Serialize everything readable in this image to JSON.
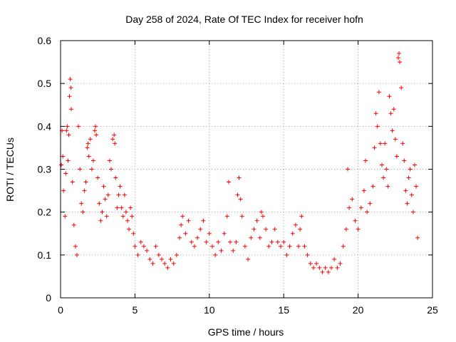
{
  "chart_data": {
    "type": "scatter",
    "title": "Day 258 of 2024, Rate Of TEC Index for receiver hofn",
    "xlabel": "GPS time / hours",
    "ylabel": "ROTI / TECUs",
    "xlim": [
      0,
      25
    ],
    "ylim": [
      0,
      0.6
    ],
    "xticks": [
      0,
      5,
      10,
      15,
      20,
      25
    ],
    "xtick_labels": [
      "0",
      "5",
      "10",
      "15",
      "20",
      "25"
    ],
    "yticks": [
      0,
      0.1,
      0.2,
      0.3,
      0.4,
      0.5,
      0.6
    ],
    "ytick_labels": [
      "0",
      "0.1",
      "0.2",
      "0.3",
      "0.4",
      "0.5",
      "0.6"
    ],
    "grid": true,
    "marker": "+",
    "color": "#ff0000",
    "series": [
      {
        "name": "ROTI",
        "points": [
          [
            0.05,
            0.31
          ],
          [
            0.1,
            0.39
          ],
          [
            0.15,
            0.33
          ],
          [
            0.2,
            0.25
          ],
          [
            0.3,
            0.19
          ],
          [
            0.35,
            0.29
          ],
          [
            0.4,
            0.39
          ],
          [
            0.45,
            0.4
          ],
          [
            0.5,
            0.32
          ],
          [
            0.55,
            0.38
          ],
          [
            0.6,
            0.47
          ],
          [
            0.65,
            0.51
          ],
          [
            0.7,
            0.49
          ],
          [
            0.72,
            0.44
          ],
          [
            0.8,
            0.27
          ],
          [
            0.9,
            0.17
          ],
          [
            1.0,
            0.12
          ],
          [
            1.1,
            0.1
          ],
          [
            1.2,
            0.4
          ],
          [
            1.3,
            0.3
          ],
          [
            1.4,
            0.22
          ],
          [
            1.5,
            0.2
          ],
          [
            1.6,
            0.25
          ],
          [
            1.7,
            0.27
          ],
          [
            1.8,
            0.35
          ],
          [
            1.85,
            0.36
          ],
          [
            1.9,
            0.33
          ],
          [
            2.0,
            0.37
          ],
          [
            2.1,
            0.3
          ],
          [
            2.2,
            0.32
          ],
          [
            2.3,
            0.39
          ],
          [
            2.35,
            0.4
          ],
          [
            2.4,
            0.38
          ],
          [
            2.5,
            0.28
          ],
          [
            2.6,
            0.22
          ],
          [
            2.7,
            0.18
          ],
          [
            2.8,
            0.2
          ],
          [
            2.9,
            0.26
          ],
          [
            3.0,
            0.23
          ],
          [
            3.1,
            0.19
          ],
          [
            3.2,
            0.24
          ],
          [
            3.3,
            0.32
          ],
          [
            3.4,
            0.3
          ],
          [
            3.5,
            0.37
          ],
          [
            3.6,
            0.38
          ],
          [
            3.65,
            0.36
          ],
          [
            3.7,
            0.28
          ],
          [
            3.8,
            0.21
          ],
          [
            3.9,
            0.24
          ],
          [
            4.0,
            0.26
          ],
          [
            4.1,
            0.21
          ],
          [
            4.2,
            0.19
          ],
          [
            4.3,
            0.24
          ],
          [
            4.4,
            0.2
          ],
          [
            4.5,
            0.18
          ],
          [
            4.6,
            0.16
          ],
          [
            4.7,
            0.21
          ],
          [
            4.8,
            0.19
          ],
          [
            4.9,
            0.15
          ],
          [
            5.0,
            0.12
          ],
          [
            5.2,
            0.1
          ],
          [
            5.4,
            0.13
          ],
          [
            5.6,
            0.12
          ],
          [
            5.8,
            0.11
          ],
          [
            6.0,
            0.09
          ],
          [
            6.2,
            0.08
          ],
          [
            6.4,
            0.12
          ],
          [
            6.6,
            0.1
          ],
          [
            6.8,
            0.09
          ],
          [
            7.0,
            0.08
          ],
          [
            7.2,
            0.07
          ],
          [
            7.4,
            0.09
          ],
          [
            7.6,
            0.08
          ],
          [
            7.8,
            0.1
          ],
          [
            8.0,
            0.14
          ],
          [
            8.1,
            0.17
          ],
          [
            8.2,
            0.19
          ],
          [
            8.4,
            0.15
          ],
          [
            8.6,
            0.18
          ],
          [
            8.8,
            0.13
          ],
          [
            9.0,
            0.12
          ],
          [
            9.2,
            0.14
          ],
          [
            9.4,
            0.16
          ],
          [
            9.6,
            0.18
          ],
          [
            9.8,
            0.13
          ],
          [
            10.0,
            0.15
          ],
          [
            10.2,
            0.12
          ],
          [
            10.4,
            0.1
          ],
          [
            10.6,
            0.13
          ],
          [
            10.8,
            0.11
          ],
          [
            11.0,
            0.15
          ],
          [
            11.2,
            0.19
          ],
          [
            11.3,
            0.27
          ],
          [
            11.4,
            0.13
          ],
          [
            11.6,
            0.11
          ],
          [
            11.8,
            0.13
          ],
          [
            11.9,
            0.24
          ],
          [
            12.0,
            0.28
          ],
          [
            12.1,
            0.23
          ],
          [
            12.2,
            0.19
          ],
          [
            12.4,
            0.12
          ],
          [
            12.6,
            0.09
          ],
          [
            12.8,
            0.14
          ],
          [
            13.0,
            0.16
          ],
          [
            13.2,
            0.18
          ],
          [
            13.4,
            0.14
          ],
          [
            13.5,
            0.2
          ],
          [
            13.6,
            0.19
          ],
          [
            13.8,
            0.16
          ],
          [
            14.0,
            0.12
          ],
          [
            14.2,
            0.13
          ],
          [
            14.4,
            0.16
          ],
          [
            14.6,
            0.13
          ],
          [
            14.8,
            0.12
          ],
          [
            15.0,
            0.13
          ],
          [
            15.2,
            0.1
          ],
          [
            15.4,
            0.12
          ],
          [
            15.6,
            0.15
          ],
          [
            15.8,
            0.17
          ],
          [
            16.0,
            0.12
          ],
          [
            16.1,
            0.16
          ],
          [
            16.2,
            0.19
          ],
          [
            16.4,
            0.12
          ],
          [
            16.6,
            0.1
          ],
          [
            16.8,
            0.08
          ],
          [
            17.0,
            0.07
          ],
          [
            17.2,
            0.08
          ],
          [
            17.4,
            0.07
          ],
          [
            17.6,
            0.06
          ],
          [
            17.8,
            0.07
          ],
          [
            18.0,
            0.06
          ],
          [
            18.2,
            0.07
          ],
          [
            18.4,
            0.09
          ],
          [
            18.6,
            0.07
          ],
          [
            18.8,
            0.08
          ],
          [
            19.0,
            0.12
          ],
          [
            19.2,
            0.16
          ],
          [
            19.3,
            0.3
          ],
          [
            19.4,
            0.21
          ],
          [
            19.6,
            0.23
          ],
          [
            19.8,
            0.18
          ],
          [
            20.0,
            0.16
          ],
          [
            20.2,
            0.21
          ],
          [
            20.4,
            0.25
          ],
          [
            20.5,
            0.32
          ],
          [
            20.6,
            0.2
          ],
          [
            20.8,
            0.22
          ],
          [
            21.0,
            0.26
          ],
          [
            21.1,
            0.35
          ],
          [
            21.2,
            0.43
          ],
          [
            21.3,
            0.4
          ],
          [
            21.4,
            0.48
          ],
          [
            21.5,
            0.36
          ],
          [
            21.6,
            0.31
          ],
          [
            21.7,
            0.28
          ],
          [
            21.8,
            0.36
          ],
          [
            21.9,
            0.3
          ],
          [
            22.0,
            0.26
          ],
          [
            22.1,
            0.47
          ],
          [
            22.2,
            0.43
          ],
          [
            22.3,
            0.39
          ],
          [
            22.4,
            0.44
          ],
          [
            22.5,
            0.37
          ],
          [
            22.6,
            0.33
          ],
          [
            22.7,
            0.56
          ],
          [
            22.75,
            0.57
          ],
          [
            22.8,
            0.55
          ],
          [
            22.9,
            0.49
          ],
          [
            23.0,
            0.36
          ],
          [
            23.1,
            0.32
          ],
          [
            23.2,
            0.25
          ],
          [
            23.3,
            0.22
          ],
          [
            23.4,
            0.28
          ],
          [
            23.5,
            0.3
          ],
          [
            23.6,
            0.24
          ],
          [
            23.7,
            0.2
          ],
          [
            23.8,
            0.31
          ],
          [
            23.9,
            0.26
          ],
          [
            24.0,
            0.14
          ]
        ]
      }
    ]
  }
}
